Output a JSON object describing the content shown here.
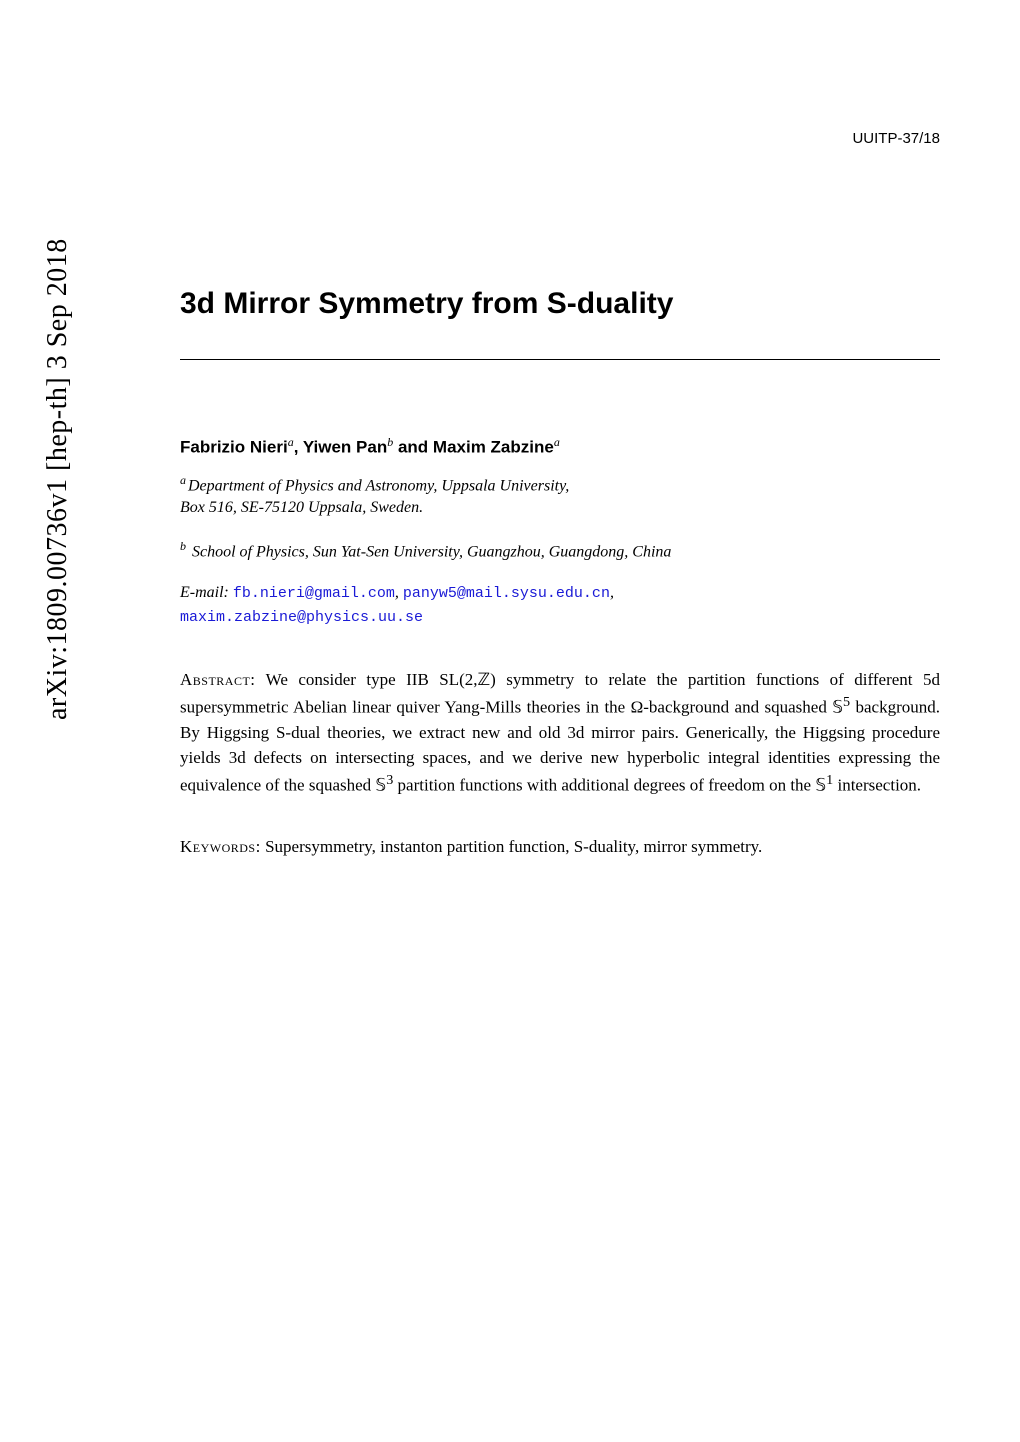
{
  "arxiv": {
    "id": "arXiv:1809.00736v1",
    "category": "[hep-th]",
    "date": "3 Sep 2018"
  },
  "report_number": "UUITP-37/18",
  "title": "3d Mirror Symmetry from S-duality",
  "authors": {
    "a1_name": "Fabrizio Nieri",
    "a1_sup": "a",
    "a2_name": "Yiwen Pan",
    "a2_sup": "b",
    "a3_name": "Maxim Zabzine",
    "a3_sup": "a"
  },
  "affiliations": {
    "a_sup": "a",
    "a_text1": "Department of Physics and Astronomy, Uppsala University,",
    "a_text2": "Box 516, SE-75120 Uppsala, Sweden.",
    "b_sup": "b",
    "b_text": "School of Physics, Sun Yat-Sen University, Guangzhou, Guangdong, China"
  },
  "emails": {
    "label": "E-mail:",
    "e1": "fb.nieri@gmail.com",
    "e2": "panyw5@mail.sysu.edu.cn",
    "e3": "maxim.zabzine@physics.uu.se"
  },
  "abstract": {
    "label": "Abstract:",
    "text_part1": "We consider type IIB SL(2,ℤ) symmetry to relate the partition functions of different 5d supersymmetric Abelian linear quiver Yang-Mills theories in the Ω-background and squashed 𝕊",
    "sup5": "5",
    "text_part2": " background. By Higgsing S-dual theories, we extract new and old 3d mirror pairs. Generically, the Higgsing procedure yields 3d defects on intersecting spaces, and we derive new hyperbolic integral identities expressing the equivalence of the squashed 𝕊",
    "sup3": "3",
    "text_part3": " partition functions with additional degrees of freedom on the 𝕊",
    "sup1": "1",
    "text_part4": " intersection."
  },
  "keywords": {
    "label": "Keywords:",
    "text": "Supersymmetry, instanton partition function, S-duality, mirror symmetry."
  },
  "colors": {
    "background": "#ffffff",
    "text": "#000000",
    "link": "#1a1ad6"
  },
  "fonts": {
    "serif": "Times New Roman",
    "sans": "Arial",
    "mono": "Courier New",
    "title_size_pt": 22,
    "body_size_pt": 12,
    "author_size_pt": 12
  }
}
